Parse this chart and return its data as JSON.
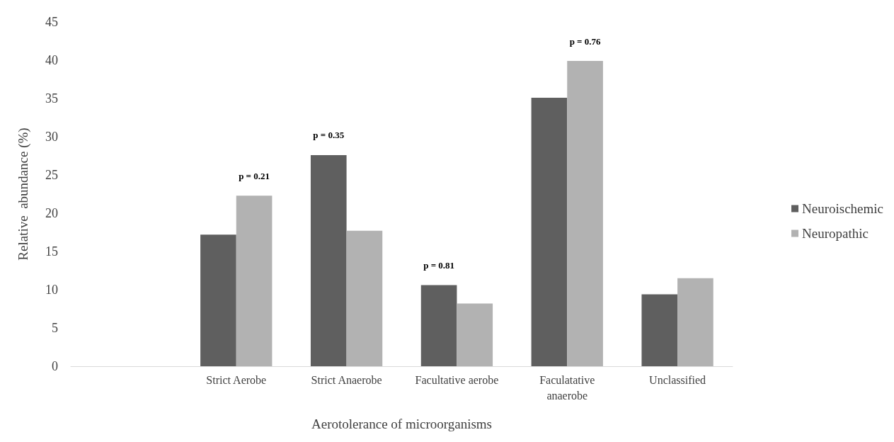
{
  "chart_data": {
    "type": "bar",
    "xlabel": "Aerotolerance of microorganisms",
    "ylabel": "Relative  abundance (%)",
    "categories": [
      null,
      "Strict Aerobe",
      "Strict Anaerobe",
      "Facultative aerobe",
      "Faculatative\nanaerobe",
      "Unclassified"
    ],
    "series": [
      {
        "name": "Neuroischemic",
        "color": "#5f5f5f",
        "values": [
          null,
          17.2,
          27.6,
          10.6,
          35.1,
          9.4
        ]
      },
      {
        "name": "Neuropathic",
        "color": "#b2b2b2",
        "values": [
          null,
          22.3,
          17.7,
          8.2,
          39.9,
          11.5
        ]
      }
    ],
    "ylim": [
      0,
      45
    ],
    "yticks": [
      0,
      5,
      10,
      15,
      20,
      25,
      30,
      35,
      40,
      45
    ],
    "grid": false,
    "legend": "right",
    "annotations": [
      "p = 0.21",
      "p = 0.35",
      "p = 0.81",
      "p = 0.76"
    ]
  }
}
